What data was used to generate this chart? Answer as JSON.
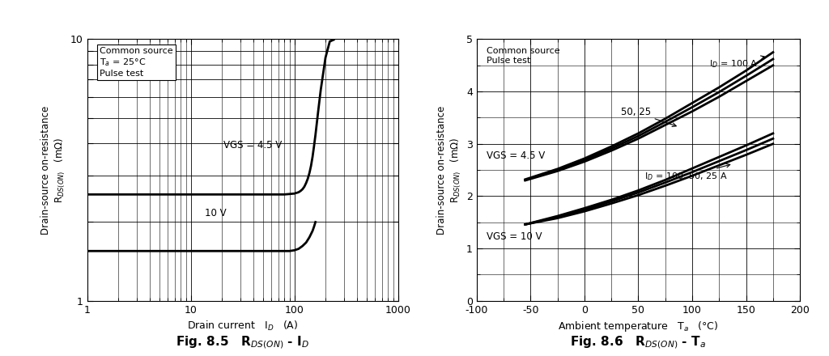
{
  "fig85": {
    "title": "Fig. 8.5   R$_{DS(ON)}$ - I$_D$",
    "annotation": "Common source\nT$_a$ = 25°C\nPulse test",
    "xlabel": "Drain current   I$_D$   (A)",
    "ylabel": "Drain-source on-resistance\nR$_{DS(ON)}$   (mΩ)",
    "xlim": [
      1,
      1000
    ],
    "ylim": [
      1,
      10
    ],
    "vgs45_x": [
      1,
      2,
      3,
      5,
      10,
      20,
      30,
      40,
      50,
      60,
      70,
      80,
      90,
      100,
      110,
      115,
      120,
      125,
      130,
      135,
      140,
      145,
      150,
      155,
      160,
      170,
      180,
      200,
      220,
      240
    ],
    "vgs45_y": [
      2.55,
      2.55,
      2.55,
      2.55,
      2.55,
      2.55,
      2.55,
      2.55,
      2.55,
      2.55,
      2.55,
      2.55,
      2.56,
      2.57,
      2.6,
      2.63,
      2.67,
      2.73,
      2.82,
      2.93,
      3.08,
      3.28,
      3.55,
      3.9,
      4.3,
      5.3,
      6.4,
      8.5,
      9.8,
      9.95
    ],
    "vgs10_x": [
      1,
      2,
      3,
      5,
      10,
      20,
      30,
      40,
      50,
      60,
      70,
      80,
      90,
      100,
      110,
      120,
      130,
      140,
      150,
      155,
      160
    ],
    "vgs10_y": [
      1.55,
      1.55,
      1.55,
      1.55,
      1.55,
      1.55,
      1.55,
      1.55,
      1.55,
      1.55,
      1.55,
      1.55,
      1.55,
      1.56,
      1.58,
      1.62,
      1.67,
      1.75,
      1.85,
      1.92,
      2.0
    ],
    "label_vgs45": "VGS = 4.5 V",
    "label_vgs10": "10 V"
  },
  "fig86": {
    "title": "Fig. 8.6   R$_{DS(ON)}$ - T$_a$",
    "annotation": "Common source\nPulse test",
    "xlabel": "Ambient temperature   T$_a$   (°C)",
    "ylabel": "Drain-source on-resistance\nR$_{DS(ON)}$   (mΩ)",
    "xlim": [
      -100,
      200
    ],
    "ylim": [
      0,
      5
    ],
    "vgs45_id100_x": [
      -55,
      -25,
      0,
      25,
      50,
      75,
      100,
      125,
      150,
      175
    ],
    "vgs45_id100_y": [
      2.32,
      2.52,
      2.72,
      2.95,
      3.2,
      3.48,
      3.78,
      4.08,
      4.4,
      4.75
    ],
    "vgs45_id50_x": [
      -55,
      -25,
      0,
      25,
      50,
      75,
      100,
      125,
      150,
      175
    ],
    "vgs45_id50_y": [
      2.31,
      2.5,
      2.69,
      2.91,
      3.15,
      3.42,
      3.7,
      3.99,
      4.3,
      4.62
    ],
    "vgs45_id25_x": [
      -55,
      -25,
      0,
      25,
      50,
      75,
      100,
      125,
      150,
      175
    ],
    "vgs45_id25_y": [
      2.3,
      2.48,
      2.66,
      2.87,
      3.1,
      3.36,
      3.62,
      3.9,
      4.2,
      4.5
    ],
    "vgs10_id100_x": [
      -55,
      -25,
      0,
      25,
      50,
      75,
      100,
      125,
      150,
      175
    ],
    "vgs10_id100_y": [
      1.46,
      1.62,
      1.77,
      1.93,
      2.11,
      2.31,
      2.53,
      2.75,
      2.97,
      3.2
    ],
    "vgs10_id50_x": [
      -55,
      -25,
      0,
      25,
      50,
      75,
      100,
      125,
      150,
      175
    ],
    "vgs10_id50_y": [
      1.46,
      1.6,
      1.74,
      1.9,
      2.07,
      2.26,
      2.46,
      2.67,
      2.88,
      3.1
    ],
    "vgs10_id25_x": [
      -55,
      -25,
      0,
      25,
      50,
      75,
      100,
      125,
      150,
      175
    ],
    "vgs10_id25_y": [
      1.46,
      1.58,
      1.71,
      1.86,
      2.02,
      2.2,
      2.39,
      2.59,
      2.79,
      3.0
    ],
    "label_vgs45": "VGS = 4.5 V",
    "label_vgs10": "VGS = 10 V",
    "label_id100": "I$_D$ = 100 A",
    "label_id_group45": "50, 25",
    "label_id_group10": "I$_D$ = 100, 50, 25 A"
  },
  "background_color": "#ffffff",
  "line_color": "#000000",
  "grid_color": "#000000",
  "lw_curve": 2.0
}
